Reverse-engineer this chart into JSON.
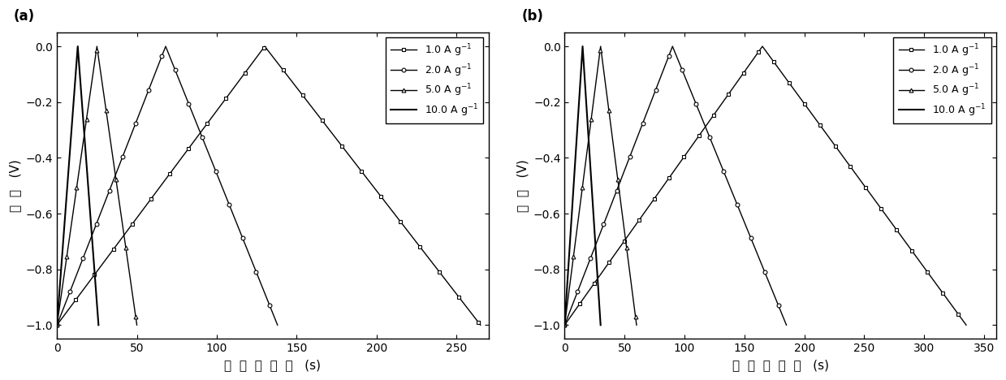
{
  "panel_a": {
    "label": "(a)",
    "curves": [
      {
        "rate": "1.0",
        "label": "1.0 A g",
        "marker": "s",
        "markersize": 3.5,
        "linewidth": 1.0,
        "charge_time": 130,
        "discharge_time": 135,
        "v_min": -1.0,
        "v_max": 0.0,
        "n_markers": 22
      },
      {
        "rate": "2.0",
        "label": "2.0 A g",
        "marker": "o",
        "markersize": 3.5,
        "linewidth": 1.0,
        "charge_time": 68,
        "discharge_time": 70,
        "v_min": -1.0,
        "v_max": 0.0,
        "n_markers": 16
      },
      {
        "rate": "5.0",
        "label": "5.0 A g",
        "marker": "^",
        "markersize": 3.5,
        "linewidth": 1.0,
        "charge_time": 25,
        "discharge_time": 25,
        "v_min": -1.0,
        "v_max": 0.0,
        "n_markers": 8
      },
      {
        "rate": "10.0",
        "label": "10.0 A g",
        "marker": "",
        "markersize": 0,
        "linewidth": 1.5,
        "charge_time": 13,
        "discharge_time": 13,
        "v_min": -1.0,
        "v_max": 0.0,
        "n_markers": 0
      }
    ],
    "xlim": [
      0,
      270
    ],
    "ylim": [
      -1.05,
      0.05
    ],
    "xticks": [
      0,
      50,
      100,
      150,
      200,
      250
    ],
    "yticks": [
      0.0,
      -0.2,
      -0.4,
      -0.6,
      -0.8,
      -1.0
    ],
    "xlabel": "充  放  电  时  间   (s)",
    "ylabel": "电  压   (V)"
  },
  "panel_b": {
    "label": "(b)",
    "curves": [
      {
        "rate": "1.0",
        "label": "1.0 A g",
        "marker": "s",
        "markersize": 3.5,
        "linewidth": 1.0,
        "charge_time": 165,
        "discharge_time": 170,
        "v_min": -1.0,
        "v_max": 0.0,
        "n_markers": 25
      },
      {
        "rate": "2.0",
        "label": "2.0 A g",
        "marker": "o",
        "markersize": 3.5,
        "linewidth": 1.0,
        "charge_time": 90,
        "discharge_time": 95,
        "v_min": -1.0,
        "v_max": 0.0,
        "n_markers": 16
      },
      {
        "rate": "5.0",
        "label": "5.0 A g",
        "marker": "^",
        "markersize": 3.5,
        "linewidth": 1.0,
        "charge_time": 30,
        "discharge_time": 30,
        "v_min": -1.0,
        "v_max": 0.0,
        "n_markers": 8
      },
      {
        "rate": "10.0",
        "label": "10.0 A g",
        "marker": "",
        "markersize": 0,
        "linewidth": 1.5,
        "charge_time": 15,
        "discharge_time": 15,
        "v_min": -1.0,
        "v_max": 0.0,
        "n_markers": 0
      }
    ],
    "xlim": [
      0,
      360
    ],
    "ylim": [
      -1.05,
      0.05
    ],
    "xticks": [
      0,
      50,
      100,
      150,
      200,
      250,
      300,
      350
    ],
    "yticks": [
      0.0,
      -0.2,
      -0.4,
      -0.6,
      -0.8,
      -1.0
    ],
    "xlabel": "充  放  电  时  间   (s)",
    "ylabel": "电  压   (V)"
  },
  "color": "black",
  "figure_bg": "white"
}
